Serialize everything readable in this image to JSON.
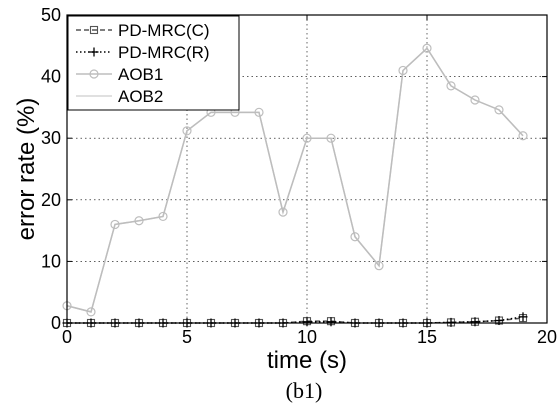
{
  "chart_data": {
    "type": "line",
    "caption": "(b1)",
    "xlabel": "time (s)",
    "ylabel": "error rate (%)",
    "xlim": [
      0,
      20
    ],
    "ylim": [
      0,
      50
    ],
    "xticks": [
      0,
      5,
      10,
      15,
      20
    ],
    "yticks": [
      0,
      10,
      20,
      30,
      40,
      50
    ],
    "grid": true,
    "legend_position": "top-left",
    "x": [
      0,
      1,
      2,
      3,
      4,
      5,
      6,
      7,
      8,
      9,
      10,
      11,
      12,
      13,
      14,
      15,
      16,
      17,
      18,
      19
    ],
    "series": [
      {
        "name": "PD-MRC(C)",
        "color": "#555555",
        "line_style": "dashed",
        "marker": "square",
        "values": [
          0,
          0,
          0,
          0,
          0,
          0,
          0,
          0,
          0,
          0,
          0.3,
          0.3,
          0,
          0,
          0,
          0,
          0.1,
          0.2,
          0.4,
          0.8
        ]
      },
      {
        "name": "PD-MRC(R)",
        "color": "#000000",
        "line_style": "dotted",
        "marker": "plus",
        "values": [
          0,
          0,
          0,
          0,
          0,
          0,
          0,
          0,
          0,
          0,
          0.2,
          0.2,
          0,
          0,
          0,
          0,
          0.1,
          0.2,
          0.4,
          1.0
        ]
      },
      {
        "name": "AOB1",
        "color": "#bdbdbd",
        "line_style": "solid",
        "marker": "circle",
        "values": [
          2.8,
          1.8,
          16.0,
          16.6,
          17.3,
          31.2,
          34.2,
          34.2,
          34.2,
          18.0,
          30.0,
          30.0,
          14.0,
          9.3,
          41.0,
          44.6,
          38.5,
          36.2,
          34.6,
          30.4
        ]
      },
      {
        "name": "AOB2",
        "color": "#d6d6d6",
        "line_style": "solid",
        "marker": "none",
        "values": [
          2.8,
          1.8,
          16.0,
          16.6,
          17.3,
          31.2,
          34.2,
          34.2,
          34.2,
          18.0,
          30.0,
          30.0,
          14.0,
          9.3,
          41.0,
          44.6,
          38.5,
          36.2,
          34.6,
          30.4
        ]
      }
    ]
  }
}
